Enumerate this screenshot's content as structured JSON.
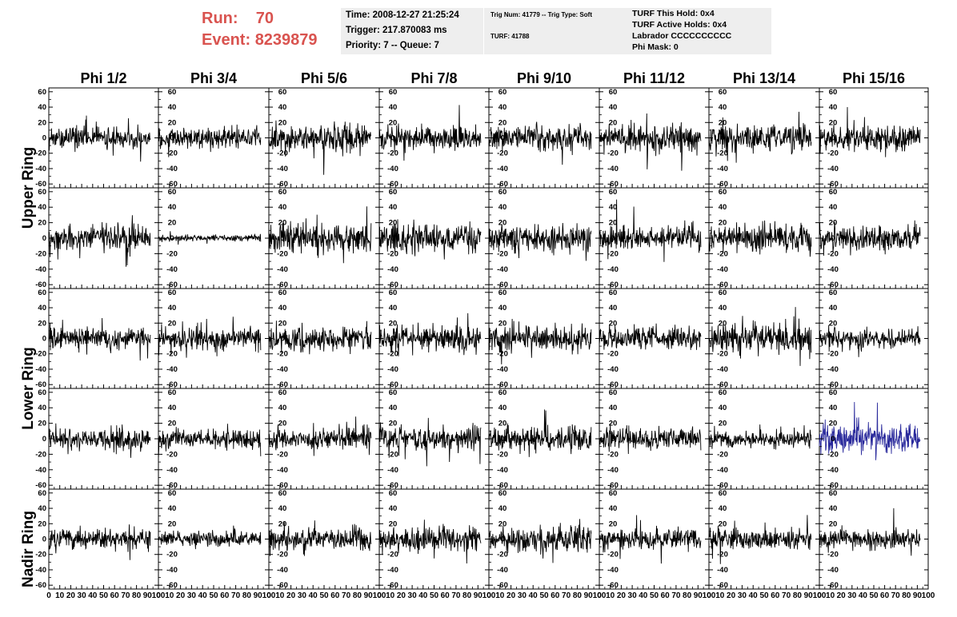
{
  "header": {
    "run_label": "Run:",
    "run_value": "70",
    "event_label": "Event:",
    "event_value": "8239879",
    "info_left": [
      "Time: 2008-12-27 21:25:24",
      "Trigger: 217.870083 ms",
      "Priority: 7 -- Queue: 7"
    ],
    "info_mid": [
      "Trig Num: 41779 -- Trig Type: Soft",
      "TURF: 41788"
    ],
    "info_right": [
      "TURF This Hold: 0x4",
      "TURF Active Holds: 0x4",
      "Labrador CCCCCCCCCC",
      "Phi Mask: 0"
    ]
  },
  "chart_data": {
    "type": "line",
    "column_labels": [
      "Phi 1/2",
      "Phi 3/4",
      "Phi 5/6",
      "Phi 7/8",
      "Phi 9/10",
      "Phi 11/12",
      "Phi 13/14",
      "Phi 15/16"
    ],
    "ring_labels": [
      "Upper Ring",
      "Lower Ring",
      "Nadir Ring"
    ],
    "rows": 5,
    "ylim": [
      -65,
      65
    ],
    "xlim": [
      0,
      100
    ],
    "y_ticks": [
      -60,
      -40,
      -20,
      0,
      20,
      40,
      60
    ],
    "x_ticks": [
      0,
      10,
      20,
      30,
      40,
      50,
      60,
      70,
      80,
      90,
      100
    ],
    "samples": 260,
    "line_color": "#000000",
    "highlight_color": "#2a2a9c",
    "highlight": {
      "row": 3,
      "col": 7
    },
    "amplitudes": [
      [
        10,
        9,
        12,
        10,
        11,
        12,
        13,
        11
      ],
      [
        12,
        3,
        13,
        13,
        12,
        11,
        12,
        11
      ],
      [
        10,
        11,
        11,
        12,
        11,
        10,
        13,
        9
      ],
      [
        10,
        9,
        10,
        12,
        11,
        10,
        7,
        14
      ],
      [
        9,
        7,
        10,
        11,
        11,
        10,
        9,
        9
      ]
    ]
  }
}
